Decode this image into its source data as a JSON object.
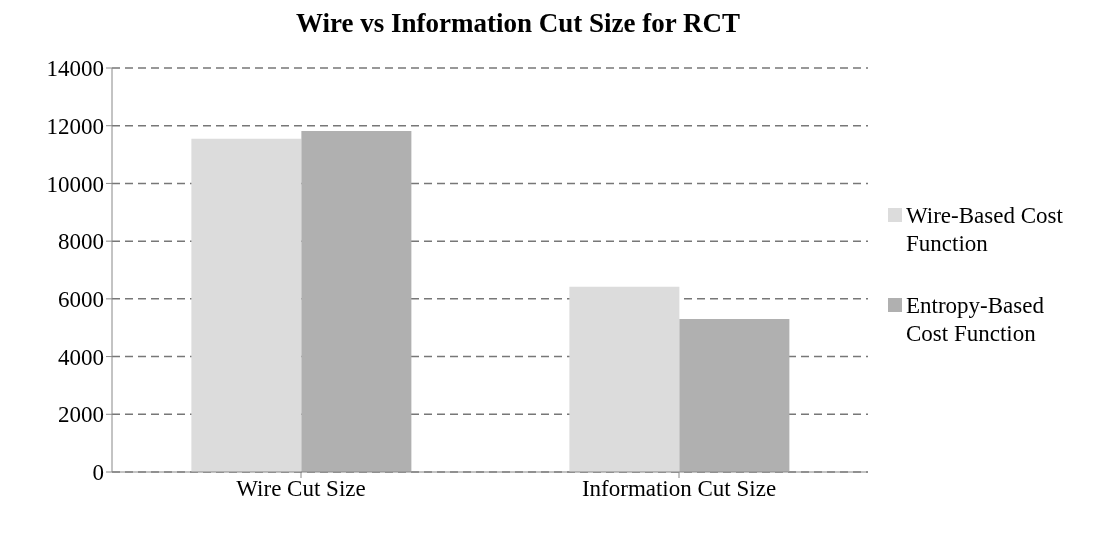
{
  "chart_data": {
    "type": "bar",
    "title": "Wire vs Information Cut Size for RCT",
    "categories": [
      "Wire Cut Size",
      "Information Cut Size"
    ],
    "series": [
      {
        "name": "Wire-Based Cost Function",
        "color": "#dcdcdc",
        "values": [
          11550,
          6420
        ]
      },
      {
        "name": "Entropy-Based Cost Function",
        "color": "#b0b0b0",
        "values": [
          11820,
          5300
        ]
      }
    ],
    "ylim": [
      0,
      14000
    ],
    "yticks": [
      0,
      2000,
      4000,
      6000,
      8000,
      10000,
      12000,
      14000
    ],
    "grid": "y",
    "legend": "right"
  }
}
